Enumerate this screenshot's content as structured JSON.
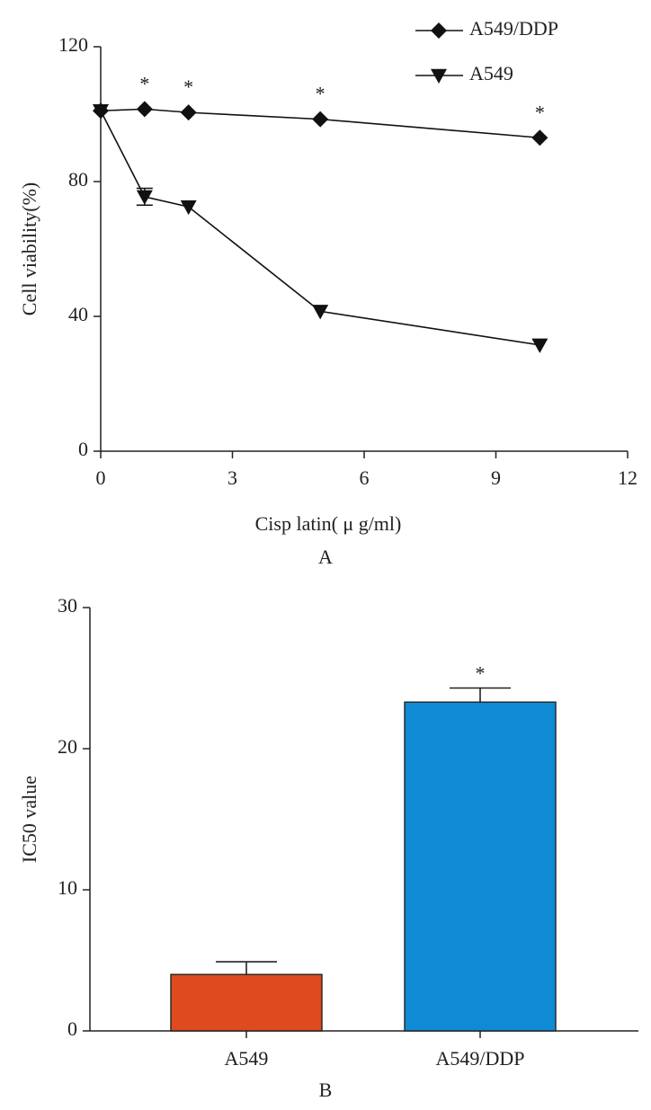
{
  "chart_data": [
    {
      "type": "line",
      "title": "A",
      "xlabel": "Cisp latin( μ g/ml)",
      "ylabel": "Cell viability(%)",
      "x": [
        0,
        1,
        2,
        5,
        10
      ],
      "series": [
        {
          "name": "A549/DDP",
          "color": "#111111",
          "marker": "diamond",
          "values": [
            101,
            101.5,
            100.5,
            98.5,
            93
          ],
          "errors": [
            null,
            null,
            null,
            null,
            null
          ]
        },
        {
          "name": "A549",
          "color": "#111111",
          "marker": "triangle-down",
          "values": [
            101,
            75.5,
            72.5,
            41.5,
            31.5
          ],
          "errors": [
            null,
            2.5,
            null,
            null,
            null
          ]
        }
      ],
      "annotations": [
        {
          "x": 1,
          "text": "*"
        },
        {
          "x": 2,
          "text": "*"
        },
        {
          "x": 5,
          "text": "*"
        },
        {
          "x": 10,
          "text": "*"
        }
      ],
      "xlim": [
        0,
        12
      ],
      "xticks": [
        0,
        3,
        6,
        9,
        12
      ],
      "ylim": [
        0,
        120
      ],
      "yticks": [
        0,
        40,
        80,
        120
      ],
      "legend": "top-right",
      "grid": false
    },
    {
      "type": "bar",
      "title": "B",
      "ylabel": "IC50 value",
      "categories": [
        "A549",
        "A549/DDP"
      ],
      "values": [
        4,
        23.3
      ],
      "errors": [
        0.9,
        1.0
      ],
      "colors": [
        "#dd4b1e",
        "#0f8bd6"
      ],
      "annotations": [
        {
          "category": "A549/DDP",
          "text": "*"
        }
      ],
      "ylim": [
        0,
        30
      ],
      "yticks": [
        0,
        10,
        20,
        30
      ],
      "grid": false
    }
  ]
}
